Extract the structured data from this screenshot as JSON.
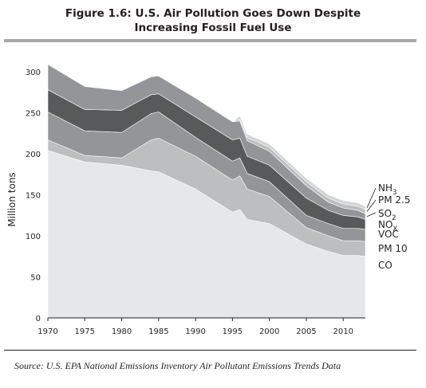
{
  "chart_data": {
    "type": "area",
    "stacked": true,
    "title_line1": "Figure 1.6: U.S. Air Pollution Goes Down Despite",
    "title_line2": "Increasing Fossil Fuel Use",
    "ylabel": "Million tons",
    "xlabel": "",
    "ylim": [
      0,
      300
    ],
    "xlim": [
      1970,
      2013
    ],
    "xticks": [
      1970,
      1975,
      1980,
      1985,
      1990,
      1995,
      2000,
      2005,
      2010
    ],
    "yticks": [
      0,
      50,
      100,
      150,
      200,
      250,
      300
    ],
    "grid": false,
    "legend": "right",
    "x": [
      1970,
      1975,
      1980,
      1984,
      1985,
      1990,
      1995,
      1996,
      1997,
      2000,
      2005,
      2008,
      2010,
      2012,
      2013
    ],
    "series": [
      {
        "name": "CO",
        "color": "#e6e7e8",
        "values": [
          204,
          190,
          186,
          179,
          178,
          157,
          129,
          132,
          120,
          115,
          90,
          81,
          76,
          76,
          75
        ]
      },
      {
        "name": "PM 10",
        "color": "#bcbec0",
        "values": [
          13,
          8,
          9,
          38,
          41,
          40,
          39,
          41,
          37,
          33,
          20,
          19,
          18,
          18,
          18
        ]
      },
      {
        "name": "VOC",
        "color": "#939598",
        "values": [
          34,
          30,
          31,
          32,
          32,
          23,
          23,
          22,
          19,
          18,
          15,
          15,
          15,
          15,
          15
        ]
      },
      {
        "name": "NOX",
        "name_main": "NO",
        "name_sub": "X",
        "color": "#58595b",
        "values": [
          27,
          26,
          27,
          23,
          22,
          25,
          26,
          24,
          21,
          20,
          21,
          16,
          16,
          14,
          12
        ]
      },
      {
        "name": "SO2",
        "name_main": "SO",
        "name_sub": "2",
        "color": "#939598",
        "values": [
          31,
          28,
          24,
          22,
          22,
          23,
          22,
          21,
          19,
          17,
          15,
          10,
          9,
          8,
          7
        ]
      },
      {
        "name": "PM 2.5",
        "color": "#bcbec0",
        "values": [
          0,
          0,
          0,
          0,
          0,
          0,
          0,
          2,
          4,
          5,
          5,
          5,
          5,
          5,
          5
        ]
      },
      {
        "name": "NH3",
        "name_main": "NH",
        "name_sub": "3",
        "color": "#d1d3d4",
        "values": [
          0,
          0,
          0,
          0,
          0,
          0,
          0,
          4,
          4,
          4,
          4,
          4,
          4,
          4,
          4
        ]
      }
    ]
  },
  "source": "Source: U.S. EPA National Emissions Inventory Air Pollutant Emissions Trends Data"
}
